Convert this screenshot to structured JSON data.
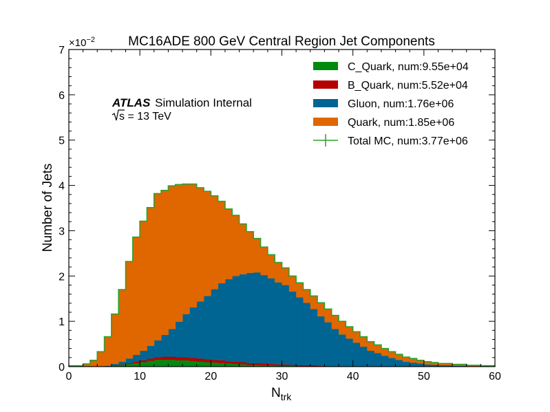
{
  "chart_data": {
    "type": "histogram-stacked",
    "title": "MC16ADE 800 GeV Central Region Jet Components",
    "xlabel_main": "N",
    "xlabel_sub": "trk",
    "ylabel": "Number of Jets",
    "y_multiplier_text": "×10",
    "y_multiplier_exp": "−2",
    "xlim": [
      0,
      60
    ],
    "ylim": [
      0,
      7
    ],
    "x_ticks": [
      0,
      10,
      20,
      30,
      40,
      50,
      60
    ],
    "x_tick_labels": [
      "0",
      "10",
      "20",
      "30",
      "40",
      "50",
      "60"
    ],
    "y_ticks": [
      0,
      1,
      2,
      3,
      4,
      5,
      6,
      7
    ],
    "y_tick_labels": [
      "0",
      "1",
      "2",
      "3",
      "4",
      "5",
      "6",
      "7"
    ],
    "atlas_label": "ATLAS",
    "atlas_sub": "Simulation Internal",
    "energy_label": "s = 13 TeV",
    "legend_position": "top-right",
    "bin_edges_start": 0,
    "bin_width": 1,
    "series": [
      {
        "name": "C_Quark, num:9.55e+04",
        "color": "#008a0e",
        "values": [
          0.0,
          0.0,
          0.0,
          0.0,
          0.0,
          0.01,
          0.02,
          0.04,
          0.06,
          0.08,
          0.1,
          0.13,
          0.15,
          0.15,
          0.15,
          0.14,
          0.14,
          0.12,
          0.11,
          0.1,
          0.09,
          0.08,
          0.07,
          0.06,
          0.05,
          0.04,
          0.04,
          0.03,
          0.03,
          0.02,
          0.02,
          0.02,
          0.01,
          0.01,
          0.01,
          0.01,
          0.0,
          0.0,
          0.0,
          0.0,
          0.0,
          0.0,
          0.0,
          0.0,
          0.0,
          0.0,
          0.0,
          0.0,
          0.0,
          0.0,
          0.0,
          0.0,
          0.0,
          0.0,
          0.0,
          0.0,
          0.0,
          0.0,
          0.0,
          0.0
        ]
      },
      {
        "name": "B_Quark, num:5.52e+04",
        "color": "#b50000",
        "values": [
          0.0,
          0.0,
          0.0,
          0.0,
          0.0,
          0.0,
          0.01,
          0.01,
          0.02,
          0.03,
          0.04,
          0.05,
          0.06,
          0.07,
          0.07,
          0.07,
          0.07,
          0.07,
          0.07,
          0.06,
          0.06,
          0.06,
          0.05,
          0.05,
          0.05,
          0.04,
          0.04,
          0.04,
          0.03,
          0.03,
          0.03,
          0.02,
          0.02,
          0.02,
          0.02,
          0.01,
          0.01,
          0.01,
          0.01,
          0.01,
          0.01,
          0.01,
          0.0,
          0.0,
          0.0,
          0.0,
          0.0,
          0.0,
          0.0,
          0.0,
          0.0,
          0.0,
          0.0,
          0.0,
          0.0,
          0.0,
          0.0,
          0.0,
          0.0,
          0.0
        ]
      },
      {
        "name": "Gluon, num:1.76e+06",
        "color": "#006592",
        "values": [
          0.0,
          0.0,
          0.0,
          0.0,
          0.0,
          0.01,
          0.03,
          0.06,
          0.1,
          0.15,
          0.21,
          0.28,
          0.37,
          0.48,
          0.61,
          0.78,
          0.95,
          1.12,
          1.26,
          1.4,
          1.56,
          1.7,
          1.81,
          1.89,
          1.94,
          1.99,
          2.0,
          1.95,
          1.89,
          1.81,
          1.75,
          1.62,
          1.5,
          1.38,
          1.24,
          1.09,
          0.97,
          0.82,
          0.7,
          0.61,
          0.52,
          0.43,
          0.35,
          0.3,
          0.24,
          0.19,
          0.15,
          0.11,
          0.09,
          0.07,
          0.05,
          0.04,
          0.03,
          0.03,
          0.02,
          0.02,
          0.01,
          0.01,
          0.0,
          0.0
        ]
      },
      {
        "name": "Quark, num:1.85e+06",
        "color": "#e06600",
        "values": [
          0.02,
          0.02,
          0.06,
          0.14,
          0.33,
          0.64,
          1.1,
          1.59,
          2.14,
          2.6,
          2.86,
          3.05,
          3.24,
          3.19,
          3.16,
          3.03,
          2.87,
          2.72,
          2.51,
          2.31,
          2.06,
          1.81,
          1.55,
          1.34,
          1.11,
          0.91,
          0.75,
          0.62,
          0.52,
          0.44,
          0.38,
          0.34,
          0.32,
          0.29,
          0.29,
          0.3,
          0.29,
          0.3,
          0.29,
          0.26,
          0.24,
          0.22,
          0.2,
          0.18,
          0.16,
          0.14,
          0.12,
          0.1,
          0.09,
          0.07,
          0.06,
          0.05,
          0.04,
          0.04,
          0.03,
          0.03,
          0.02,
          0.02,
          0.02,
          0.02
        ]
      }
    ],
    "total": {
      "name": "Total MC, num:3.77e+06",
      "color": "#2ca02c"
    }
  }
}
